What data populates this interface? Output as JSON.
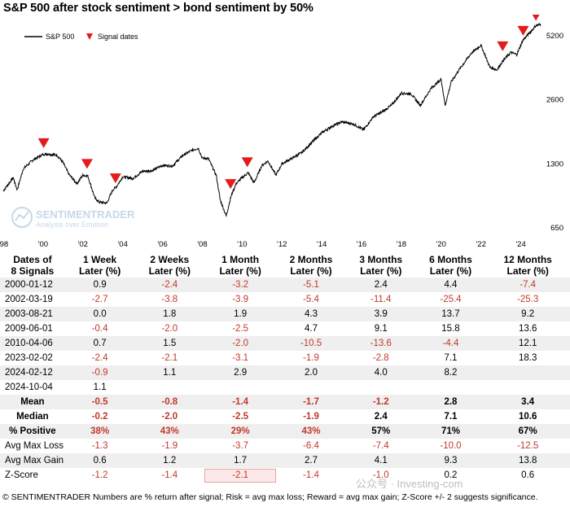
{
  "title": "S&P 500 after stock sentiment > bond sentiment by 50%",
  "legend": {
    "line_label": "S&P 500",
    "marker_label": "Signal dates"
  },
  "watermark": {
    "brand": "SENTIMENTRADER",
    "tagline": "Analysis over Emotion",
    "wechat": "公众号 · Investing-com"
  },
  "footer": "© SENTIMENTRADER  Numbers are % return after signal; Risk = avg max loss; Reward = avg max gain; Z-Score +/- 2 suggests significance.",
  "colors": {
    "line": "#000000",
    "marker": "#e31b1b",
    "negative": "#c0392b",
    "row_shade": "#efefef"
  },
  "chart_data": {
    "type": "line",
    "x_tick_labels": [
      "'98",
      "'00",
      "'02",
      "'04",
      "'06",
      "'08",
      "'10",
      "'12",
      "'14",
      "'16",
      "'18",
      "'20",
      "'22",
      "'24"
    ],
    "y_tick_labels": [
      "650",
      "1300",
      "2600",
      "5200"
    ],
    "y_scale": "log",
    "ylim": [
      650,
      6100
    ],
    "xlim": [
      1998.0,
      2025.0
    ],
    "legend_position": "top-left",
    "series": [
      {
        "name": "S&P 500",
        "x": [
          1998.0,
          1998.5,
          1998.7,
          1999.0,
          1999.5,
          2000.0,
          2000.2,
          2000.7,
          2001.0,
          2001.3,
          2001.7,
          2002.0,
          2002.25,
          2002.6,
          2002.8,
          2003.2,
          2003.5,
          2003.7,
          2004.0,
          2004.5,
          2005.0,
          2005.5,
          2006.0,
          2006.5,
          2007.0,
          2007.5,
          2007.8,
          2008.0,
          2008.3,
          2008.7,
          2008.9,
          2009.2,
          2009.45,
          2009.7,
          2010.0,
          2010.3,
          2010.6,
          2011.0,
          2011.3,
          2011.7,
          2012.0,
          2012.5,
          2013.0,
          2013.5,
          2014.0,
          2014.5,
          2015.0,
          2015.6,
          2016.1,
          2016.6,
          2017.0,
          2017.5,
          2018.0,
          2018.5,
          2018.95,
          2019.5,
          2020.0,
          2020.2,
          2020.5,
          2020.9,
          2021.5,
          2022.0,
          2022.45,
          2022.8,
          2023.1,
          2023.5,
          2023.8,
          2024.1,
          2024.5,
          2024.76,
          2025.0
        ],
        "values": [
          970,
          1120,
          980,
          1230,
          1360,
          1440,
          1450,
          1430,
          1320,
          1160,
          1050,
          1150,
          1140,
          900,
          860,
          850,
          980,
          1020,
          1130,
          1110,
          1200,
          1210,
          1280,
          1270,
          1420,
          1510,
          1540,
          1380,
          1380,
          1150,
          880,
          740,
          920,
          1050,
          1120,
          1180,
          1060,
          1280,
          1340,
          1150,
          1300,
          1380,
          1470,
          1640,
          1820,
          1950,
          2050,
          2000,
          1880,
          2170,
          2270,
          2450,
          2800,
          2770,
          2450,
          2950,
          3250,
          2450,
          3150,
          3600,
          4300,
          4700,
          3700,
          3600,
          3960,
          4350,
          4250,
          4950,
          5450,
          5810,
          5900
        ]
      },
      {
        "name": "Signal dates",
        "type": "scatter",
        "x": [
          2000.03,
          2002.21,
          2003.64,
          2009.42,
          2010.26,
          2023.09,
          2024.12,
          2024.76
        ],
        "values": [
          1465,
          1170,
          1000,
          940,
          1190,
          4180,
          4940,
          5810
        ]
      }
    ]
  },
  "table": {
    "headers": [
      [
        "Dates of",
        "8 Signals"
      ],
      [
        "1 Week",
        "Later (%)"
      ],
      [
        "2 Weeks",
        "Later (%)"
      ],
      [
        "1 Month",
        "Later (%)"
      ],
      [
        "2 Months",
        "Later (%)"
      ],
      [
        "3 Months",
        "Later (%)"
      ],
      [
        "6 Months",
        "Later (%)"
      ],
      [
        "12 Months",
        "Later (%)"
      ]
    ],
    "rows": [
      {
        "label": "2000-01-12",
        "cells": [
          "0.9",
          "-2.4",
          "-3.2",
          "-5.1",
          "2.4",
          "4.4",
          "-7.4"
        ]
      },
      {
        "label": "2002-03-19",
        "cells": [
          "-2.7",
          "-3.8",
          "-3.9",
          "-5.4",
          "-11.4",
          "-25.4",
          "-25.3"
        ]
      },
      {
        "label": "2003-08-21",
        "cells": [
          "0.0",
          "1.8",
          "1.9",
          "4.3",
          "3.9",
          "13.7",
          "9.2"
        ]
      },
      {
        "label": "2009-06-01",
        "cells": [
          "-0.4",
          "-2.0",
          "-2.5",
          "4.7",
          "9.1",
          "15.8",
          "13.6"
        ]
      },
      {
        "label": "2010-04-06",
        "cells": [
          "0.7",
          "1.5",
          "-2.0",
          "-10.5",
          "-13.6",
          "-4.4",
          "12.1"
        ]
      },
      {
        "label": "2023-02-02",
        "cells": [
          "-2.4",
          "-2.1",
          "-3.1",
          "-1.9",
          "-2.8",
          "7.1",
          "18.3"
        ]
      },
      {
        "label": "2024-02-12",
        "cells": [
          "-0.9",
          "1.1",
          "2.9",
          "2.0",
          "4.0",
          "8.2",
          ""
        ]
      },
      {
        "label": "2024-10-04",
        "cells": [
          "1.1",
          "",
          "",
          "",
          "",
          "",
          ""
        ]
      }
    ],
    "summary": [
      {
        "label": "Mean",
        "cells": [
          "-0.5",
          "-0.8",
          "-1.4",
          "-1.7",
          "-1.2",
          "2.8",
          "3.4"
        ]
      },
      {
        "label": "Median",
        "cells": [
          "-0.2",
          "-2.0",
          "-2.5",
          "-1.9",
          "2.4",
          "7.1",
          "10.6"
        ]
      },
      {
        "label": "% Positive",
        "cells": [
          "38%",
          "43%",
          "29%",
          "43%",
          "57%",
          "71%",
          "67%"
        ],
        "neg_cols": [
          0,
          1,
          2,
          3
        ]
      },
      {
        "label": "Avg Max Loss",
        "cells": [
          "-1.3",
          "-1.9",
          "-3.7",
          "-6.4",
          "-7.4",
          "-10.0",
          "-12.5"
        ]
      },
      {
        "label": "Avg Max Gain",
        "cells": [
          "0.6",
          "1.2",
          "1.7",
          "2.7",
          "4.1",
          "9.3",
          "13.8"
        ]
      },
      {
        "label": "Z-Score",
        "cells": [
          "-1.2",
          "-1.4",
          "-2.1",
          "-1.4",
          "-1.0",
          "0.2",
          "0.6"
        ]
      }
    ]
  }
}
